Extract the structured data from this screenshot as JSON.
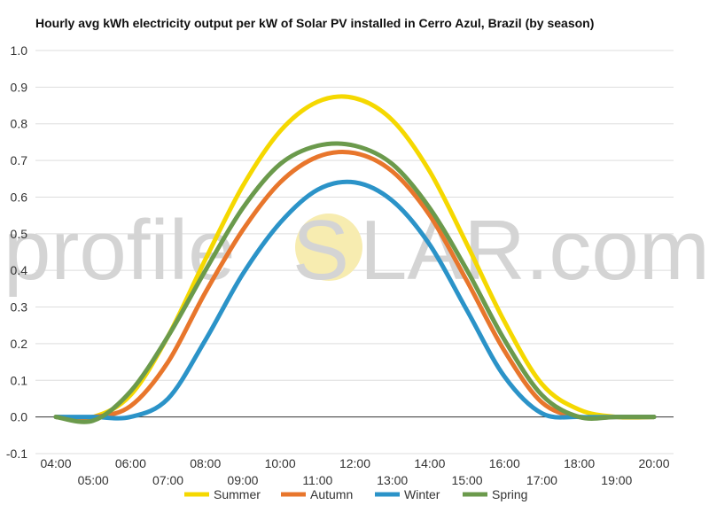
{
  "chart_data": {
    "type": "line",
    "title": "Hourly avg kWh electricity output per kW of Solar PV installed in Cerro Azul, Brazil (by season)",
    "xlabel": "",
    "ylabel": "",
    "ylim": [
      -0.1,
      1.0
    ],
    "yticks": [
      "-0.1",
      "0.0",
      "0.1",
      "0.2",
      "0.3",
      "0.4",
      "0.5",
      "0.6",
      "0.7",
      "0.8",
      "0.9",
      "1.0"
    ],
    "x": [
      "04:00",
      "05:00",
      "06:00",
      "07:00",
      "08:00",
      "09:00",
      "10:00",
      "11:00",
      "12:00",
      "13:00",
      "14:00",
      "15:00",
      "16:00",
      "17:00",
      "18:00",
      "19:00",
      "20:00"
    ],
    "series": [
      {
        "name": "Summer",
        "color": "#f5d800",
        "values": [
          0.0,
          0.0,
          0.06,
          0.22,
          0.43,
          0.63,
          0.78,
          0.86,
          0.87,
          0.81,
          0.67,
          0.47,
          0.26,
          0.09,
          0.02,
          0.0,
          0.0
        ]
      },
      {
        "name": "Autumn",
        "color": "#e8762c",
        "values": [
          0.0,
          0.0,
          0.03,
          0.15,
          0.34,
          0.51,
          0.64,
          0.71,
          0.72,
          0.67,
          0.55,
          0.37,
          0.18,
          0.04,
          0.0,
          0.0,
          0.0
        ]
      },
      {
        "name": "Winter",
        "color": "#2b93c8",
        "values": [
          0.0,
          0.0,
          0.0,
          0.05,
          0.21,
          0.39,
          0.53,
          0.62,
          0.64,
          0.59,
          0.47,
          0.29,
          0.11,
          0.01,
          0.0,
          0.0,
          0.0
        ]
      },
      {
        "name": "Spring",
        "color": "#6b9a4c",
        "values": [
          0.0,
          -0.01,
          0.07,
          0.22,
          0.4,
          0.57,
          0.69,
          0.74,
          0.74,
          0.69,
          0.57,
          0.4,
          0.21,
          0.06,
          0.0,
          0.0,
          0.0
        ]
      }
    ],
    "grid": true,
    "legend_position": "bottom"
  },
  "watermark": {
    "text_left": "profile",
    "text_s": "S",
    "text_right": "LAR.com",
    "sun_color": "#f7ecb0"
  },
  "colors": {
    "grid": "#dddddd",
    "zero_line": "#333333"
  }
}
